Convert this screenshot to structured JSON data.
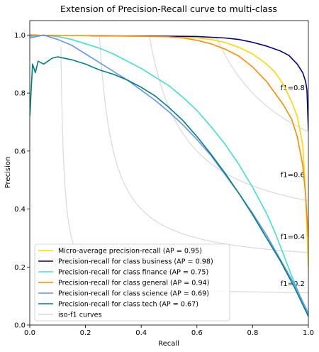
{
  "chart_data": {
    "type": "line",
    "title": "Extension of Precision-Recall curve to multi-class",
    "xlabel": "Recall",
    "ylabel": "Precision",
    "xlim": [
      0.0,
      1.0
    ],
    "ylim": [
      0.0,
      1.05
    ],
    "xticks": [
      "0.0",
      "0.2",
      "0.4",
      "0.6",
      "0.8",
      "1.0"
    ],
    "yticks": [
      "0.0",
      "0.2",
      "0.4",
      "0.6",
      "0.8",
      "1.0"
    ],
    "grid": false,
    "legend_position": "lower-left",
    "iso_f1": {
      "values": [
        0.2,
        0.4,
        0.6,
        0.8
      ],
      "labels": [
        "f1=0.2",
        "f1=0.4",
        "f1=0.6",
        "f1=0.8"
      ],
      "color": "#d9d9d9",
      "legend": "iso-f1 curves"
    },
    "series": [
      {
        "name": "Micro-average precision-recall (AP = 0.95)",
        "color": "#ffd700",
        "points": [
          [
            0.0,
            1.0
          ],
          [
            0.05,
            0.998
          ],
          [
            0.1,
            0.998
          ],
          [
            0.2,
            0.998
          ],
          [
            0.3,
            0.997
          ],
          [
            0.4,
            0.996
          ],
          [
            0.5,
            0.994
          ],
          [
            0.6,
            0.99
          ],
          [
            0.65,
            0.985
          ],
          [
            0.7,
            0.975
          ],
          [
            0.75,
            0.958
          ],
          [
            0.8,
            0.935
          ],
          [
            0.85,
            0.9
          ],
          [
            0.88,
            0.872
          ],
          [
            0.91,
            0.83
          ],
          [
            0.94,
            0.77
          ],
          [
            0.96,
            0.72
          ],
          [
            0.98,
            0.62
          ],
          [
            0.99,
            0.45
          ],
          [
            1.0,
            0.2
          ]
        ]
      },
      {
        "name": "Precision-recall for class business (AP = 0.98)",
        "color": "#000080",
        "points": [
          [
            0.0,
            1.0
          ],
          [
            0.1,
            0.998
          ],
          [
            0.2,
            0.998
          ],
          [
            0.3,
            0.997
          ],
          [
            0.4,
            0.997
          ],
          [
            0.5,
            0.996
          ],
          [
            0.6,
            0.995
          ],
          [
            0.7,
            0.99
          ],
          [
            0.75,
            0.985
          ],
          [
            0.8,
            0.975
          ],
          [
            0.85,
            0.962
          ],
          [
            0.9,
            0.945
          ],
          [
            0.93,
            0.93
          ],
          [
            0.96,
            0.9
          ],
          [
            0.98,
            0.87
          ],
          [
            0.99,
            0.84
          ],
          [
            0.995,
            0.81
          ],
          [
            1.0,
            0.67
          ]
        ]
      },
      {
        "name": "Precision-recall for class finance (AP = 0.75)",
        "color": "#40e0d0",
        "points": [
          [
            0.0,
            0.995
          ],
          [
            0.05,
            1.0
          ],
          [
            0.1,
            0.995
          ],
          [
            0.15,
            0.985
          ],
          [
            0.2,
            0.97
          ],
          [
            0.25,
            0.955
          ],
          [
            0.3,
            0.935
          ],
          [
            0.35,
            0.91
          ],
          [
            0.4,
            0.885
          ],
          [
            0.45,
            0.855
          ],
          [
            0.5,
            0.825
          ],
          [
            0.55,
            0.785
          ],
          [
            0.6,
            0.74
          ],
          [
            0.65,
            0.685
          ],
          [
            0.7,
            0.625
          ],
          [
            0.75,
            0.555
          ],
          [
            0.8,
            0.475
          ],
          [
            0.85,
            0.385
          ],
          [
            0.88,
            0.32
          ],
          [
            0.91,
            0.245
          ],
          [
            0.94,
            0.17
          ],
          [
            0.97,
            0.1
          ],
          [
            1.0,
            0.04
          ]
        ]
      },
      {
        "name": "Precision-recall for class general (AP = 0.94)",
        "color": "#ff8c00",
        "points": [
          [
            0.0,
            1.0
          ],
          [
            0.1,
            0.998
          ],
          [
            0.2,
            0.998
          ],
          [
            0.3,
            0.997
          ],
          [
            0.4,
            0.996
          ],
          [
            0.5,
            0.994
          ],
          [
            0.55,
            0.99
          ],
          [
            0.6,
            0.982
          ],
          [
            0.65,
            0.97
          ],
          [
            0.7,
            0.952
          ],
          [
            0.75,
            0.928
          ],
          [
            0.8,
            0.89
          ],
          [
            0.85,
            0.84
          ],
          [
            0.88,
            0.8
          ],
          [
            0.91,
            0.76
          ],
          [
            0.94,
            0.71
          ],
          [
            0.96,
            0.65
          ],
          [
            0.98,
            0.55
          ],
          [
            0.99,
            0.45
          ],
          [
            1.0,
            0.3
          ]
        ]
      },
      {
        "name": "Precision-recall for class science (AP = 0.69)",
        "color": "#6495ed",
        "points": [
          [
            0.0,
            0.99
          ],
          [
            0.05,
            1.0
          ],
          [
            0.1,
            0.985
          ],
          [
            0.15,
            0.965
          ],
          [
            0.2,
            0.935
          ],
          [
            0.25,
            0.905
          ],
          [
            0.3,
            0.875
          ],
          [
            0.35,
            0.845
          ],
          [
            0.4,
            0.81
          ],
          [
            0.45,
            0.775
          ],
          [
            0.5,
            0.735
          ],
          [
            0.55,
            0.69
          ],
          [
            0.6,
            0.64
          ],
          [
            0.65,
            0.585
          ],
          [
            0.7,
            0.52
          ],
          [
            0.75,
            0.455
          ],
          [
            0.8,
            0.385
          ],
          [
            0.85,
            0.31
          ],
          [
            0.9,
            0.225
          ],
          [
            0.95,
            0.14
          ],
          [
            1.0,
            0.04
          ]
        ]
      },
      {
        "name": "Precision-recall for class tech (AP = 0.67)",
        "color": "#008080",
        "points": [
          [
            0.0,
            0.72
          ],
          [
            0.01,
            0.9
          ],
          [
            0.02,
            0.87
          ],
          [
            0.03,
            0.91
          ],
          [
            0.05,
            0.9
          ],
          [
            0.08,
            0.92
          ],
          [
            0.1,
            0.925
          ],
          [
            0.15,
            0.915
          ],
          [
            0.2,
            0.9
          ],
          [
            0.25,
            0.88
          ],
          [
            0.3,
            0.865
          ],
          [
            0.35,
            0.845
          ],
          [
            0.4,
            0.82
          ],
          [
            0.45,
            0.79
          ],
          [
            0.5,
            0.75
          ],
          [
            0.55,
            0.705
          ],
          [
            0.6,
            0.65
          ],
          [
            0.65,
            0.59
          ],
          [
            0.7,
            0.525
          ],
          [
            0.75,
            0.455
          ],
          [
            0.8,
            0.38
          ],
          [
            0.85,
            0.3
          ],
          [
            0.9,
            0.22
          ],
          [
            0.95,
            0.13
          ],
          [
            1.0,
            0.03
          ]
        ]
      }
    ]
  }
}
